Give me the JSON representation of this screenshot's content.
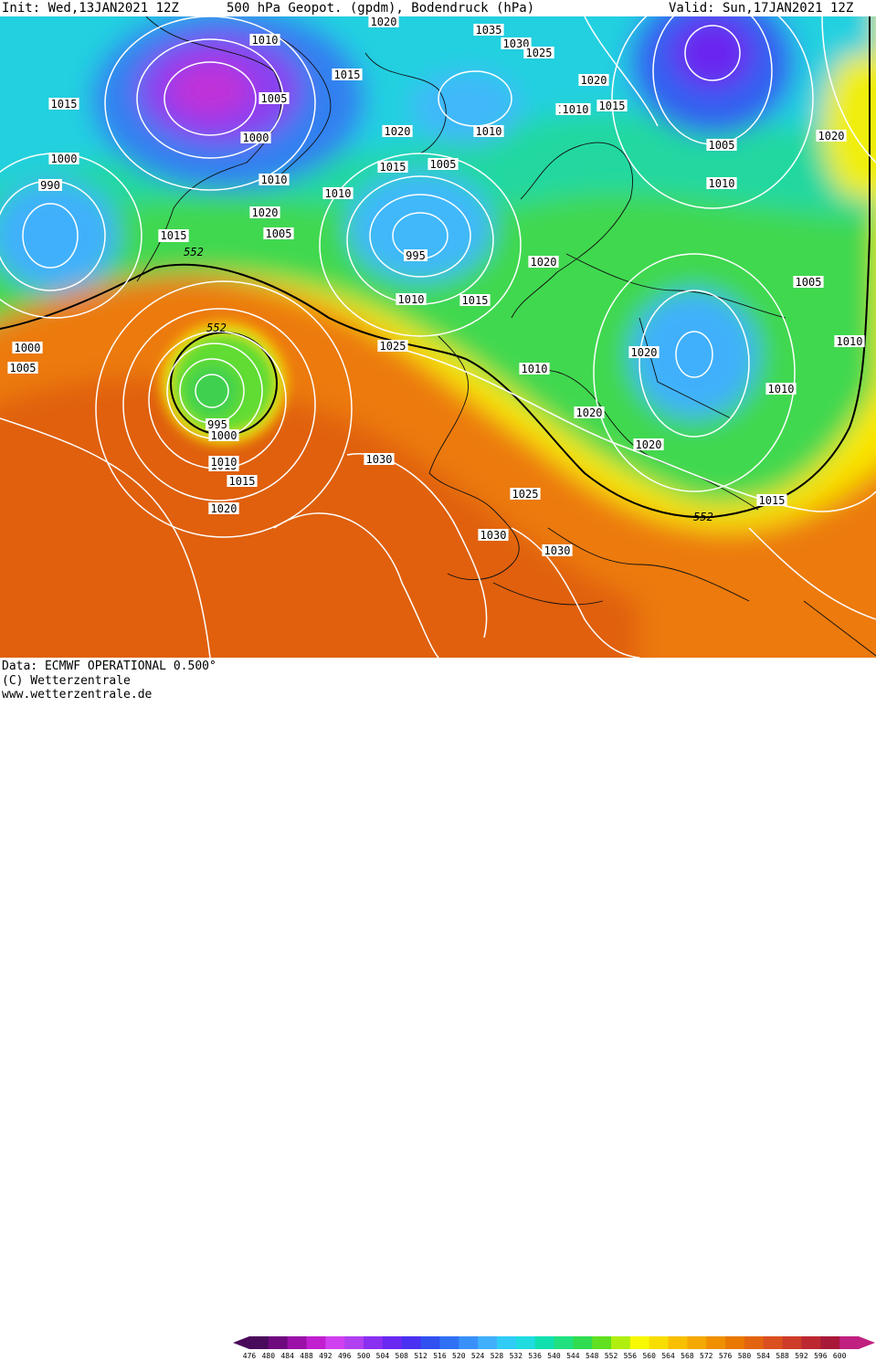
{
  "header": {
    "init": "Init: Wed,13JAN2021 12Z",
    "title": "500 hPa Geopot. (gpdm), Bodendruck (hPa)",
    "valid": "Valid: Sun,17JAN2021 12Z"
  },
  "footer": {
    "data_line": "Data: ECMWF OPERATIONAL 0.500°",
    "copyright": "(C) Wetterzentrale",
    "url": "www.wetterzentrale.de"
  },
  "colorbar": {
    "labels": [
      "476",
      "480",
      "484",
      "488",
      "492",
      "496",
      "500",
      "504",
      "508",
      "512",
      "516",
      "520",
      "524",
      "528",
      "532",
      "536",
      "540",
      "544",
      "548",
      "552",
      "556",
      "560",
      "564",
      "568",
      "572",
      "576",
      "580",
      "584",
      "588",
      "592",
      "596",
      "600"
    ],
    "colors": [
      "#4a0a5c",
      "#6e0a7e",
      "#9a10a8",
      "#c020d0",
      "#d040f0",
      "#b040f0",
      "#8a30f0",
      "#6a28f0",
      "#4a30f0",
      "#3050f0",
      "#3070f5",
      "#3a90fa",
      "#40b0fc",
      "#30ccf6",
      "#20dce0",
      "#10e0b0",
      "#20e080",
      "#30dc50",
      "#60e020",
      "#b0ee10",
      "#f8f800",
      "#f8de00",
      "#f8c000",
      "#f4a800",
      "#f09000",
      "#e87800",
      "#e26410",
      "#da5020",
      "#cc3c28",
      "#bc2830",
      "#a81838",
      "#c02080"
    ]
  },
  "map": {
    "sea_level_pressure_labels": [
      "1010",
      "1020",
      "1035",
      "1030",
      "1025",
      "1025",
      "1015",
      "1005",
      "1000",
      "1015",
      "1020",
      "1010",
      "1015",
      "1010",
      "1020",
      "1000",
      "995",
      "990",
      "1010",
      "1015",
      "1020",
      "1010",
      "1005",
      "1005",
      "1010",
      "1015",
      "995",
      "1000",
      "1015",
      "1020",
      "1010",
      "1015",
      "1020",
      "1000",
      "1005",
      "1010",
      "1025",
      "1015",
      "1010",
      "1005",
      "1010",
      "1020",
      "1010",
      "1020",
      "1020",
      "995",
      "1000",
      "1005",
      "1010",
      "1015",
      "1030",
      "1020",
      "1025",
      "1030",
      "1030",
      "1015",
      "1005",
      "1015",
      "1020"
    ],
    "geopotential_labels": [
      "552",
      "552",
      "552"
    ]
  }
}
